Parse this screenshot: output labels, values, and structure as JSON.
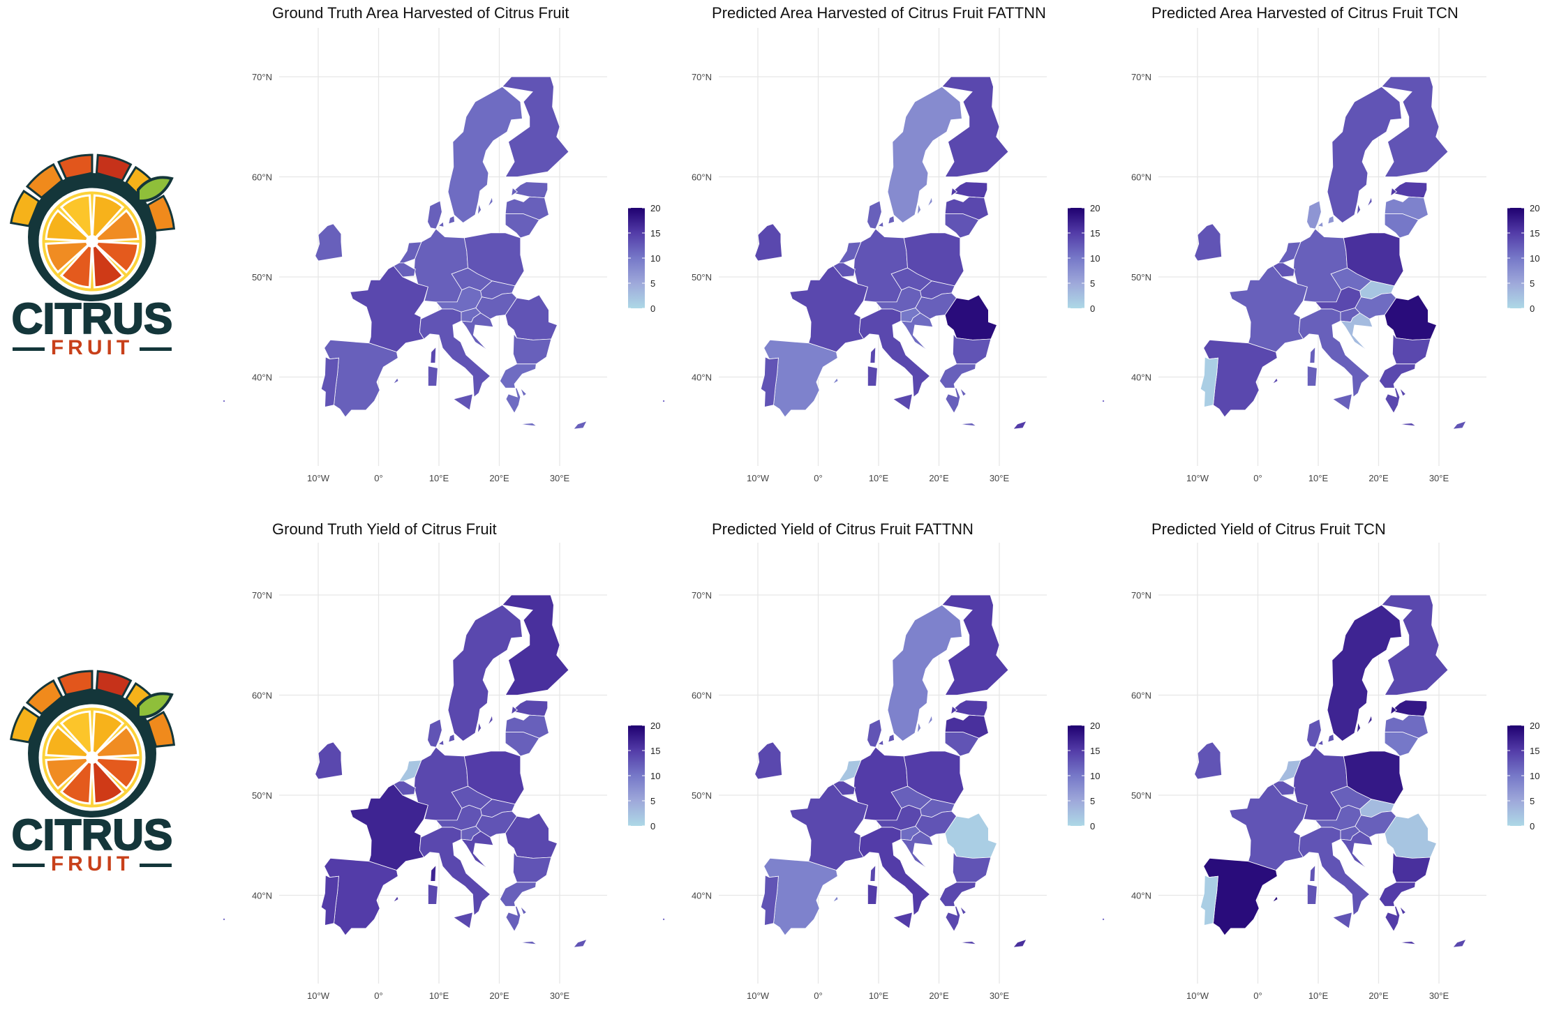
{
  "logo": {
    "brand_text": "CITRUS",
    "sub_text": "FRUIT",
    "icon": "citrus-slice-icon"
  },
  "colors": {
    "low": "#add8e6",
    "mid": "#6a5acd",
    "high": "#1f0070",
    "grid": "#e6e6e6"
  },
  "chart_data": [
    {
      "type": "choropleth",
      "title": "Ground Truth Area Harvested of Citrus Fruit",
      "xlabel": "",
      "ylabel": "",
      "x_ticks": [
        "10°W",
        "0°",
        "10°E",
        "20°E",
        "30°E"
      ],
      "y_ticks": [
        "70°N",
        "60°N",
        "50°N",
        "40°N"
      ],
      "legend": {
        "min": 0,
        "max": 20,
        "ticks": [
          "20",
          "15",
          "10",
          "5",
          "0"
        ],
        "position": "right"
      },
      "values": {
        "fi": 13,
        "se": 11,
        "ee": 12,
        "lv": 12,
        "lt": 12,
        "ie": 12,
        "fr": 14,
        "es": 12,
        "pt": 13,
        "it": 13,
        "de": 12,
        "pl": 13,
        "cz": 12,
        "at": 11,
        "sk": 12,
        "hu": 12,
        "si": 11,
        "hr": 12,
        "ro": 13,
        "bg": 12,
        "gr": 11,
        "dk": 12,
        "nl": 12,
        "be": 12,
        "cy": 12
      }
    },
    {
      "type": "choropleth",
      "title": "Predicted Area Harvested of Citrus Fruit FATTNN",
      "xlabel": "",
      "ylabel": "",
      "x_ticks": [
        "10°W",
        "0°",
        "10°E",
        "20°E",
        "30°E"
      ],
      "y_ticks": [
        "70°N",
        "60°N",
        "50°N",
        "40°N"
      ],
      "legend": {
        "min": 0,
        "max": 20,
        "ticks": [
          "20",
          "15",
          "10",
          "5",
          "0"
        ],
        "position": "right"
      },
      "values": {
        "fi": 14,
        "se": 8,
        "ee": 15,
        "lv": 14,
        "lt": 13,
        "ie": 14,
        "fr": 14,
        "es": 9,
        "pt": 13,
        "it": 14,
        "de": 13,
        "pl": 14,
        "cz": 13,
        "at": 12,
        "sk": 13,
        "hu": 12,
        "si": 10,
        "hr": 11,
        "ro": 19,
        "bg": 13,
        "gr": 12,
        "dk": 12,
        "nl": 12,
        "be": 13,
        "cy": 15
      }
    },
    {
      "type": "choropleth",
      "title": "Predicted Area Harvested of Citrus Fruit TCN",
      "xlabel": "",
      "ylabel": "",
      "x_ticks": [
        "10°W",
        "0°",
        "10°E",
        "20°E",
        "30°E"
      ],
      "y_ticks": [
        "70°N",
        "60°N",
        "50°N",
        "40°N"
      ],
      "legend": {
        "min": 0,
        "max": 20,
        "ticks": [
          "20",
          "15",
          "10",
          "5",
          "0"
        ],
        "position": "right"
      },
      "values": {
        "fi": 13,
        "se": 13,
        "ee": 15,
        "lv": 9,
        "lt": 10,
        "ie": 13,
        "fr": 12,
        "es": 14,
        "pt": 1,
        "it": 12,
        "de": 12,
        "pl": 16,
        "cz": 11,
        "at": 14,
        "sk": 2,
        "hu": 11,
        "si": 12,
        "hr": 3,
        "ro": 19,
        "bg": 14,
        "gr": 14,
        "dk": 7,
        "nl": 12,
        "be": 13,
        "cy": 13
      }
    },
    {
      "type": "choropleth",
      "title": "Ground Truth Yield of Citrus Fruit",
      "xlabel": "",
      "ylabel": "",
      "x_ticks": [
        "10°W",
        "0°",
        "10°E",
        "20°E",
        "30°E"
      ],
      "y_ticks": [
        "70°N",
        "60°N",
        "50°N",
        "40°N"
      ],
      "legend": {
        "min": 0,
        "max": 20,
        "ticks": [
          "20",
          "15",
          "10",
          "5",
          "0"
        ],
        "position": "right"
      },
      "values": {
        "fi": 16,
        "se": 14,
        "ee": 14,
        "lv": 12,
        "lt": 12,
        "ie": 14,
        "fr": 17,
        "es": 15,
        "pt": 15,
        "it": 14,
        "de": 14,
        "pl": 15,
        "cz": 13,
        "at": 13,
        "sk": 13,
        "hu": 13,
        "si": 12,
        "hr": 14,
        "ro": 14,
        "bg": 13,
        "gr": 12,
        "dk": 13,
        "nl": 2,
        "be": 13,
        "cy": 13
      }
    },
    {
      "type": "choropleth",
      "title": "Predicted Yield of Citrus Fruit FATTNN",
      "xlabel": "",
      "ylabel": "",
      "x_ticks": [
        "10°W",
        "0°",
        "10°E",
        "20°E",
        "30°E"
      ],
      "y_ticks": [
        "70°N",
        "60°N",
        "50°N",
        "40°N"
      ],
      "legend": {
        "min": 0,
        "max": 20,
        "ticks": [
          "20",
          "15",
          "10",
          "5",
          "0"
        ],
        "position": "right"
      },
      "values": {
        "fi": 15,
        "se": 9,
        "ee": 15,
        "lv": 16,
        "lt": 13,
        "ie": 14,
        "fr": 14,
        "es": 9,
        "pt": 13,
        "it": 15,
        "de": 15,
        "pl": 15,
        "cz": 12,
        "at": 14,
        "sk": 12,
        "hu": 13,
        "si": 11,
        "hr": 12,
        "ro": 1,
        "bg": 13,
        "gr": 14,
        "dk": 13,
        "nl": 2,
        "be": 14,
        "cy": 16
      }
    },
    {
      "type": "choropleth",
      "title": "Predicted Yield of Citrus Fruit TCN",
      "xlabel": "",
      "ylabel": "",
      "x_ticks": [
        "10°W",
        "0°",
        "10°E",
        "20°E",
        "30°E"
      ],
      "y_ticks": [
        "70°N",
        "60°N",
        "50°N",
        "40°N"
      ],
      "legend": {
        "min": 0,
        "max": 20,
        "ticks": [
          "20",
          "15",
          "10",
          "5",
          "0"
        ],
        "position": "right"
      },
      "values": {
        "fi": 14,
        "se": 17,
        "ee": 18,
        "lv": 11,
        "lt": 10,
        "ie": 13,
        "fr": 13,
        "es": 19,
        "pt": 1,
        "it": 13,
        "de": 14,
        "pl": 18,
        "cz": 12,
        "at": 12,
        "sk": 3,
        "hu": 12,
        "si": 12,
        "hr": 13,
        "ro": 2,
        "bg": 16,
        "gr": 15,
        "dk": 13,
        "nl": 3,
        "be": 13,
        "cy": 14
      }
    }
  ]
}
